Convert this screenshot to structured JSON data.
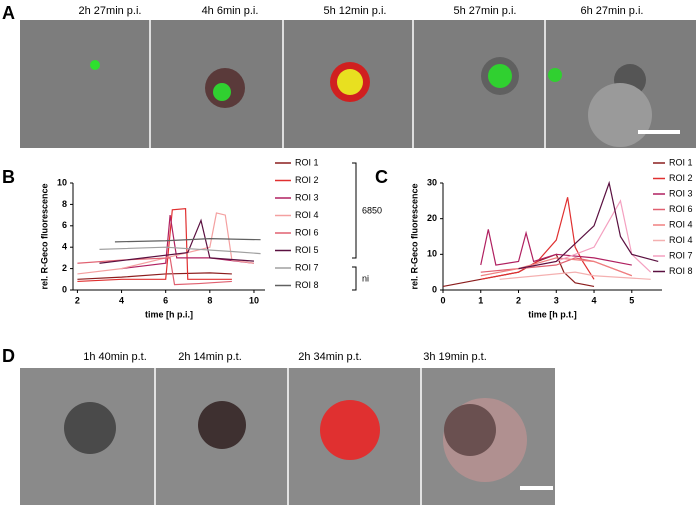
{
  "panel_labels": [
    "A",
    "B",
    "C",
    "D"
  ],
  "panel_a_captions": [
    "2h 27min p.i.",
    "4h 6min p.i.",
    "5h 12min p.i.",
    "5h 27min p.i.",
    "6h 27min p.i."
  ],
  "panel_d_captions": [
    "1h 40min p.t.",
    "2h 14min p.t.",
    "2h 34min p.t.",
    "3h 19min p.t."
  ],
  "chart_data": [
    {
      "type": "line",
      "xlabel": "time [h p.i.]",
      "ylabel": "rel. R-Geco fluorescence",
      "xlim": [
        1.8,
        10.5
      ],
      "xticks": [
        2,
        4,
        6,
        8,
        10
      ],
      "ylim": [
        0,
        10
      ],
      "yticks": [
        0,
        2,
        4,
        6,
        8,
        10
      ],
      "group_labels": [
        "6850",
        "ni"
      ],
      "series": [
        {
          "name": "ROI 1",
          "color": "#8b1d1d",
          "x": [
            2,
            4,
            6,
            8,
            9
          ],
          "values": [
            1.0,
            1.2,
            1.5,
            1.6,
            1.5
          ]
        },
        {
          "name": "ROI 2",
          "color": "#e03030",
          "x": [
            2,
            4,
            6,
            6.3,
            6.9,
            7.0,
            9
          ],
          "values": [
            0.8,
            1.0,
            1.0,
            7.5,
            7.6,
            1.0,
            1.0
          ]
        },
        {
          "name": "ROI 3",
          "color": "#b02060",
          "x": [
            4,
            6,
            6.2,
            6.5,
            8,
            10
          ],
          "values": [
            2.0,
            2.5,
            7.0,
            3.0,
            3.0,
            2.5
          ]
        },
        {
          "name": "ROI 4",
          "color": "#f4a0a0",
          "x": [
            2,
            4,
            8,
            8.3,
            8.7,
            9,
            10
          ],
          "values": [
            1.5,
            2.0,
            4.0,
            7.2,
            7.0,
            2.8,
            2.5
          ]
        },
        {
          "name": "ROI 6",
          "color": "#e06070",
          "x": [
            2,
            4,
            6.2,
            6.4,
            7.5,
            9
          ],
          "values": [
            2.5,
            2.8,
            3.0,
            0.5,
            0.6,
            0.8
          ]
        },
        {
          "name": "ROI 5",
          "color": "#5a1040",
          "x": [
            3,
            5,
            7,
            7.6,
            8,
            10
          ],
          "values": [
            2.5,
            3.0,
            3.5,
            6.5,
            3.0,
            2.7
          ]
        },
        {
          "name": "ROI 7",
          "color": "#a0a0a0",
          "x": [
            3,
            6,
            9,
            10.3
          ],
          "values": [
            3.8,
            4.0,
            3.6,
            3.4
          ]
        },
        {
          "name": "ROI 8",
          "color": "#606060",
          "x": [
            3.7,
            6,
            8,
            10.3
          ],
          "values": [
            4.5,
            4.6,
            4.8,
            4.7
          ]
        }
      ]
    },
    {
      "type": "line",
      "xlabel": "time [h p.t.]",
      "ylabel": "rel. R-Geco fluorescence",
      "xlim": [
        0,
        5.8
      ],
      "xticks": [
        0,
        1,
        2,
        3,
        4,
        5
      ],
      "ylim": [
        0,
        30
      ],
      "yticks": [
        0,
        10,
        20,
        30
      ],
      "series": [
        {
          "name": "ROI 1",
          "color": "#8b1d1d",
          "x": [
            0,
            1,
            2,
            2.5,
            3,
            3.2,
            3.5,
            4
          ],
          "values": [
            1,
            3,
            5,
            8,
            10,
            5,
            2,
            1
          ]
        },
        {
          "name": "ROI 2",
          "color": "#e03030",
          "x": [
            1,
            2,
            2.5,
            3,
            3.3,
            3.5,
            3.7,
            4
          ],
          "values": [
            3,
            5,
            8,
            14,
            26,
            12,
            8,
            3
          ]
        },
        {
          "name": "ROI 3",
          "color": "#b02060",
          "x": [
            1,
            1.2,
            1.4,
            2,
            2.2,
            2.4,
            3,
            4,
            5
          ],
          "values": [
            7,
            17,
            7,
            8,
            16,
            8,
            10,
            9,
            7
          ]
        },
        {
          "name": "ROI 6",
          "color": "#e06070",
          "x": [
            1,
            2,
            3,
            3.5,
            4,
            4.5,
            5
          ],
          "values": [
            5,
            6,
            7,
            9,
            8,
            6,
            4
          ]
        },
        {
          "name": "ROI 4",
          "color": "#f08080",
          "x": [
            1,
            2,
            3,
            4,
            5
          ],
          "values": [
            4,
            6,
            9,
            8,
            4
          ]
        },
        {
          "name": "ROI 4",
          "color": "#f4b0b0",
          "x": [
            1.5,
            2.5,
            3.5,
            4,
            5.5
          ],
          "values": [
            3,
            4,
            5,
            4,
            3
          ]
        },
        {
          "name": "ROI 7",
          "color": "#f4a0c0",
          "x": [
            2,
            3,
            4,
            4.7,
            4.9,
            5,
            5.5
          ],
          "values": [
            6,
            8,
            12,
            25,
            15,
            10,
            5
          ]
        },
        {
          "name": "ROI 8",
          "color": "#5a1040",
          "x": [
            2,
            3,
            4,
            4.4,
            4.7,
            5,
            5.7
          ],
          "values": [
            6,
            8,
            18,
            30,
            15,
            10,
            8
          ]
        }
      ]
    }
  ]
}
